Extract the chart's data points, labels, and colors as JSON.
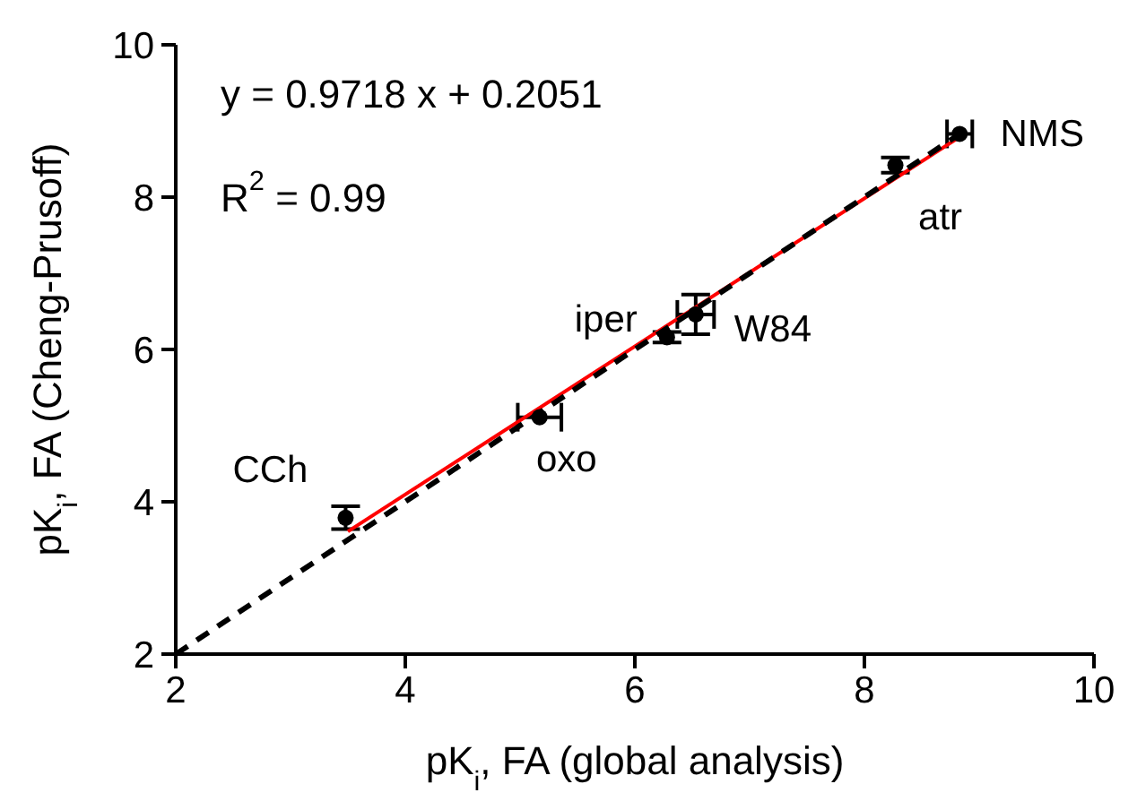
{
  "chart_data": {
    "type": "scatter",
    "xlabel": "pK$_{i}$, FA (global analysis)",
    "ylabel": "pK$_{i}$, FA (Cheng-Prusoff)",
    "xlim": [
      2,
      10
    ],
    "xticks": [
      2,
      4,
      6,
      8,
      10
    ],
    "ylim": [
      2,
      10
    ],
    "yticks": [
      2,
      4,
      6,
      8,
      10
    ],
    "series": [
      {
        "color": "#000000",
        "marker": "circle",
        "x": [
          3.48,
          5.17,
          6.28,
          6.53,
          8.27,
          8.83
        ],
        "values": [
          3.79,
          5.11,
          6.16,
          6.46,
          8.42,
          8.83
        ],
        "errors": [
          0.15,
          null,
          0.07,
          0.26,
          0.1,
          null
        ],
        "xerrors": [
          null,
          0.19,
          null,
          0.16,
          null,
          0.11
        ]
      },
      {
        "type": "line",
        "color": "#ff0000",
        "line_style": "solid",
        "marker": "none",
        "x": [
          3.5,
          8.83
        ],
        "values": [
          3.61,
          8.79
        ]
      },
      {
        "type": "line",
        "color": "#000000",
        "line_style": "dashed",
        "marker": "none",
        "x": [
          2,
          8.83
        ],
        "values": [
          2,
          8.83
        ]
      }
    ],
    "annotations": [
      "y = 0.9718 x + 0.2051",
      "R$^{2}$ = 0.99",
      {
        "text": "CCh",
        "x": 3.48,
        "y": 3.79
      },
      {
        "text": "oxo",
        "x": 5.17,
        "y": 5.11
      },
      {
        "text": "iper",
        "x": 6.28,
        "y": 6.16
      },
      {
        "text": "W84",
        "x": 6.53,
        "y": 6.46
      },
      {
        "text": "atr",
        "x": 8.27,
        "y": 8.42
      },
      {
        "text": "NMS",
        "x": 8.83,
        "y": 8.83
      }
    ]
  }
}
